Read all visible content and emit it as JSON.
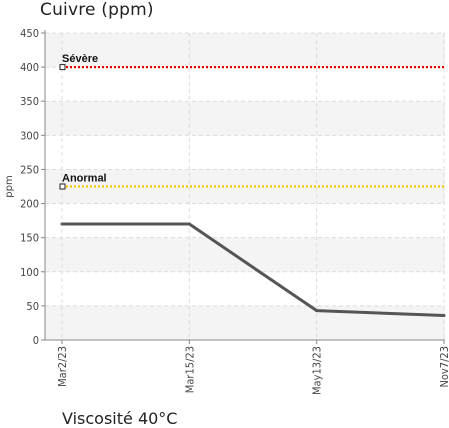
{
  "chart_data": {
    "type": "line",
    "title": "Cuivre (ppm)",
    "ylabel": "ppm",
    "xlabel": "",
    "categories": [
      "Mar2/23",
      "Mar15/23",
      "May13/23",
      "Nov7/23"
    ],
    "series": [
      {
        "values": [
          170,
          170,
          43,
          36
        ],
        "color": "#555555"
      }
    ],
    "ylim": [
      0,
      450
    ],
    "yticks": [
      0,
      50,
      100,
      150,
      200,
      250,
      300,
      350,
      400,
      450
    ],
    "reference_lines": [
      {
        "label": "Sévère",
        "value": 400,
        "color": "#e60000"
      },
      {
        "label": "Anormal",
        "value": 225,
        "color": "#f5c400"
      }
    ],
    "grid": true,
    "band_color": "#f4f4f4"
  },
  "next_chart": {
    "title": "Viscosité 40°C"
  }
}
